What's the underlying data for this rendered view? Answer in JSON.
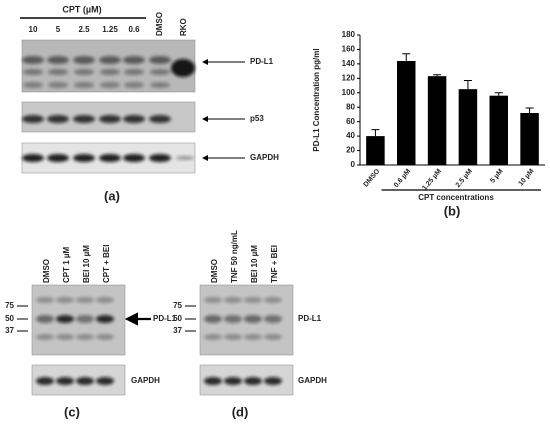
{
  "panel_a": {
    "label": "(a)",
    "header": "CPT (µM)",
    "lanes": [
      "10",
      "5",
      "2.5",
      "1.25",
      "0.6",
      "DMSO",
      "RKO"
    ],
    "blots": [
      "PD-L1",
      "p53",
      "GAPDH"
    ]
  },
  "chart_data": {
    "type": "bar",
    "panel_label": "(b)",
    "y_label": "PD-L1 Concentration pg/ml",
    "x_label": "CPT concentrations",
    "categories": [
      "DMSO",
      "0.6 µM",
      "1.25 µM",
      "2.5 µM",
      "5 µM",
      "10 µM"
    ],
    "values": [
      40,
      144,
      123,
      105,
      96,
      72
    ],
    "errors": [
      9,
      10,
      2,
      12,
      4,
      7
    ],
    "color": "#000000",
    "ylim": [
      0,
      180
    ],
    "yticks": [
      0,
      20,
      40,
      60,
      80,
      100,
      120,
      140,
      160,
      180
    ]
  },
  "panel_c": {
    "label": "(c)",
    "lanes": [
      "DMSO",
      "CPT 1 µM",
      "BEI 10 µM",
      "CPT + BEI"
    ],
    "markers": [
      "75",
      "50",
      "37"
    ],
    "blots": [
      "PD-L1",
      "GAPDH"
    ]
  },
  "panel_d": {
    "label": "(d)",
    "lanes": [
      "DMSO",
      "TNF 50 ng/mL",
      "BEI 10 µM",
      "TNF + BEI"
    ],
    "markers": [
      "75",
      "50",
      "37"
    ],
    "blots": [
      "PD-L1",
      "GAPDH"
    ]
  }
}
